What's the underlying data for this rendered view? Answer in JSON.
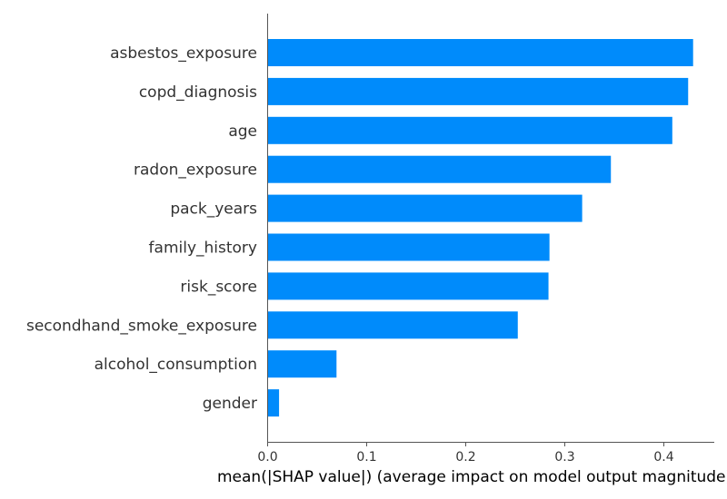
{
  "chart_data": {
    "type": "bar",
    "orientation": "horizontal",
    "title": "",
    "xlabel": "mean(|SHAP value|) (average impact on model output magnitude)",
    "ylabel": "",
    "categories": [
      "asbestos_exposure",
      "copd_diagnosis",
      "age",
      "radon_exposure",
      "pack_years",
      "family_history",
      "risk_score",
      "secondhand_smoke_exposure",
      "alcohol_consumption",
      "gender"
    ],
    "values": [
      0.43,
      0.425,
      0.409,
      0.347,
      0.318,
      0.285,
      0.284,
      0.253,
      0.07,
      0.012
    ],
    "xlim": [
      0,
      0.45
    ],
    "xticks": [
      "0.0",
      "0.1",
      "0.2",
      "0.3",
      "0.4"
    ],
    "bar_color": "#008bfb",
    "grid": false,
    "legend": "none"
  }
}
